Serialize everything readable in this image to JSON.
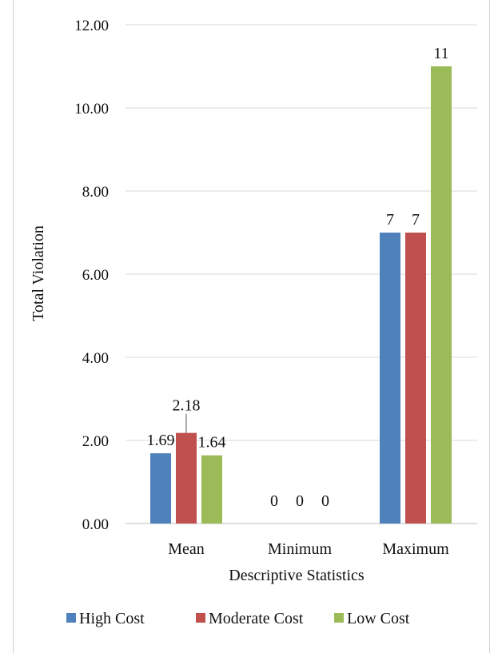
{
  "chart_data": {
    "type": "bar",
    "categories": [
      "Mean",
      "Minimum",
      "Maximum"
    ],
    "series": [
      {
        "name": "High Cost",
        "color": "#4f81bd",
        "values": [
          1.69,
          0,
          7
        ],
        "labels": [
          "1.69",
          "0",
          "7"
        ]
      },
      {
        "name": "Moderate Cost",
        "color": "#c0504d",
        "values": [
          2.18,
          0,
          7
        ],
        "labels": [
          "2.18",
          "0",
          "7"
        ]
      },
      {
        "name": "Low Cost",
        "color": "#9bbb59",
        "values": [
          1.64,
          0,
          11
        ],
        "labels": [
          "1.64",
          "0",
          "11"
        ]
      }
    ],
    "xlabel": "Descriptive Statistics",
    "ylabel": "Total Violation",
    "ylim": [
      0,
      12
    ],
    "yticks": [
      "0.00",
      "2.00",
      "4.00",
      "6.00",
      "8.00",
      "10.00",
      "12.00"
    ],
    "grid": true,
    "legend_position": "bottom"
  }
}
